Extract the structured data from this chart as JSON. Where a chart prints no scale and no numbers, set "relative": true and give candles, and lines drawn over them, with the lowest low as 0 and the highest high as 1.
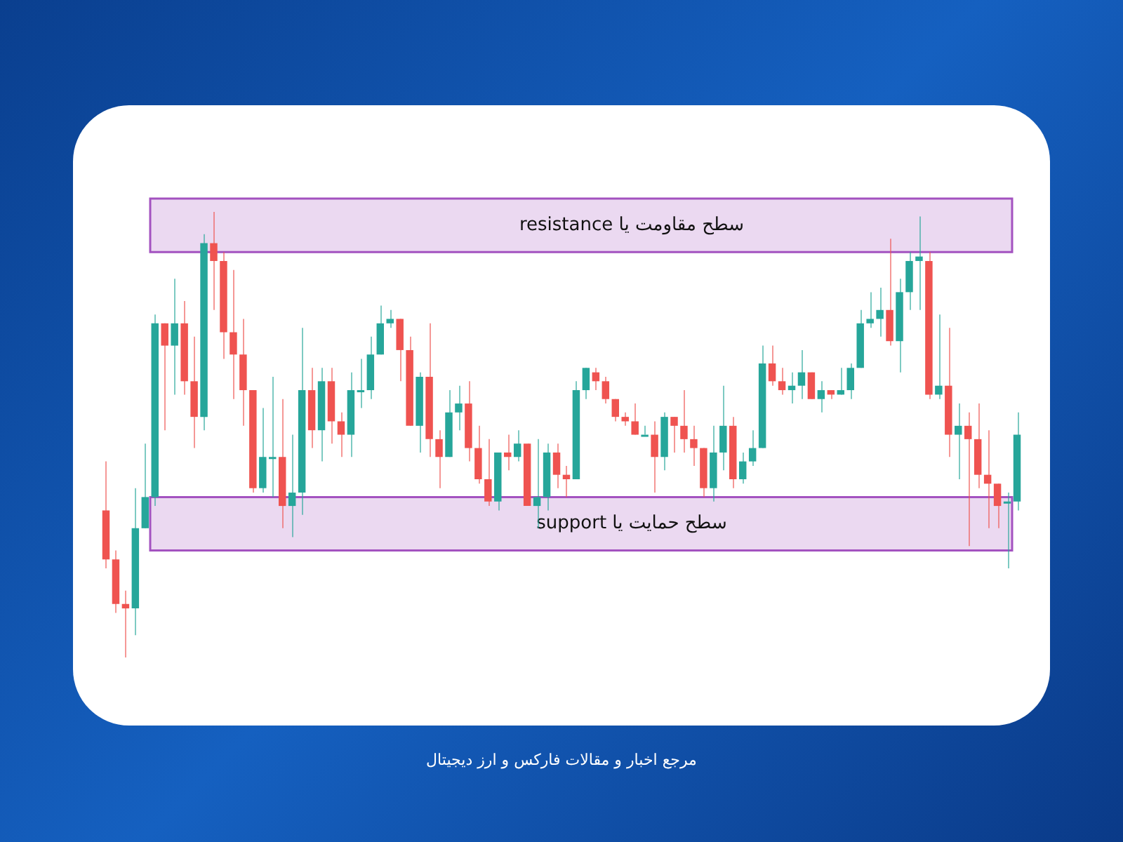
{
  "chart_data": {
    "type": "candlestick",
    "relative": true,
    "tick_labels": false,
    "legend": false,
    "categories": [
      null,
      null,
      null,
      null,
      null,
      null,
      null,
      null,
      null,
      null,
      null,
      null,
      null,
      null,
      null,
      null,
      null,
      null,
      null,
      null,
      null,
      null,
      null,
      null,
      null,
      null,
      null,
      null,
      null,
      null,
      null,
      null,
      null,
      null,
      null,
      null,
      null,
      null,
      null,
      null,
      null,
      null,
      null,
      null,
      null,
      null,
      null,
      null,
      null,
      null,
      null,
      null,
      null,
      null,
      null,
      null,
      null,
      null,
      null,
      null,
      null,
      null,
      null,
      null,
      null,
      null,
      null,
      null,
      null,
      null,
      null,
      null,
      null,
      null,
      null,
      null,
      null,
      null,
      null,
      null,
      null,
      null,
      null,
      null,
      null,
      null,
      null,
      null,
      null,
      null,
      null,
      null,
      null,
      null
    ],
    "ohlc": [
      [
        0.33,
        0.44,
        0.2,
        0.22
      ],
      [
        0.22,
        0.24,
        0.1,
        0.12
      ],
      [
        0.12,
        0.15,
        0,
        0.11
      ],
      [
        0.11,
        0.38,
        0.05,
        0.29
      ],
      [
        0.29,
        0.48,
        0.29,
        0.36
      ],
      [
        0.36,
        0.77,
        0.34,
        0.75
      ],
      [
        0.75,
        0.75,
        0.51,
        0.7
      ],
      [
        0.7,
        0.85,
        0.59,
        0.75
      ],
      [
        0.75,
        0.8,
        0.59,
        0.62
      ],
      [
        0.62,
        0.72,
        0.47,
        0.54
      ],
      [
        0.54,
        0.95,
        0.51,
        0.93
      ],
      [
        0.93,
        1,
        0.78,
        0.89
      ],
      [
        0.89,
        0.91,
        0.67,
        0.73
      ],
      [
        0.73,
        0.87,
        0.58,
        0.68
      ],
      [
        0.68,
        0.76,
        0.52,
        0.6
      ],
      [
        0.6,
        0.6,
        0.37,
        0.38
      ],
      [
        0.38,
        0.56,
        0.37,
        0.45
      ],
      [
        0.45,
        0.63,
        0.36,
        0.45
      ],
      [
        0.45,
        0.58,
        0.29,
        0.34
      ],
      [
        0.34,
        0.5,
        0.27,
        0.37
      ],
      [
        0.37,
        0.74,
        0.32,
        0.6
      ],
      [
        0.6,
        0.65,
        0.47,
        0.51
      ],
      [
        0.51,
        0.65,
        0.44,
        0.62
      ],
      [
        0.62,
        0.65,
        0.48,
        0.53
      ],
      [
        0.53,
        0.55,
        0.45,
        0.5
      ],
      [
        0.5,
        0.64,
        0.45,
        0.6
      ],
      [
        0.6,
        0.67,
        0.56,
        0.6
      ],
      [
        0.6,
        0.72,
        0.58,
        0.68
      ],
      [
        0.68,
        0.79,
        0.68,
        0.75
      ],
      [
        0.75,
        0.78,
        0.74,
        0.76
      ],
      [
        0.76,
        0.76,
        0.62,
        0.69
      ],
      [
        0.69,
        0.72,
        0.52,
        0.52
      ],
      [
        0.52,
        0.64,
        0.46,
        0.63
      ],
      [
        0.63,
        0.75,
        0.45,
        0.49
      ],
      [
        0.49,
        0.51,
        0.38,
        0.45
      ],
      [
        0.45,
        0.6,
        0.45,
        0.55
      ],
      [
        0.55,
        0.61,
        0.51,
        0.57
      ],
      [
        0.57,
        0.62,
        0.44,
        0.47
      ],
      [
        0.47,
        0.52,
        0.39,
        0.4
      ],
      [
        0.4,
        0.49,
        0.34,
        0.35
      ],
      [
        0.35,
        0.46,
        0.33,
        0.46
      ],
      [
        0.46,
        0.5,
        0.42,
        0.45
      ],
      [
        0.45,
        0.51,
        0.44,
        0.48
      ],
      [
        0.48,
        0.48,
        0.34,
        0.34
      ],
      [
        0.34,
        0.49,
        0.29,
        0.36
      ],
      [
        0.36,
        0.48,
        0.33,
        0.46
      ],
      [
        0.46,
        0.48,
        0.38,
        0.41
      ],
      [
        0.41,
        0.43,
        0.36,
        0.4
      ],
      [
        0.4,
        0.62,
        0.4,
        0.6
      ],
      [
        0.6,
        0.65,
        0.58,
        0.65
      ],
      [
        0.64,
        0.65,
        0.6,
        0.62
      ],
      [
        0.62,
        0.63,
        0.57,
        0.58
      ],
      [
        0.58,
        0.58,
        0.53,
        0.54
      ],
      [
        0.54,
        0.55,
        0.52,
        0.53
      ],
      [
        0.53,
        0.57,
        0.5,
        0.5
      ],
      [
        0.5,
        0.52,
        0.5,
        0.5
      ],
      [
        0.5,
        0.53,
        0.37,
        0.45
      ],
      [
        0.45,
        0.55,
        0.42,
        0.54
      ],
      [
        0.54,
        0.54,
        0.46,
        0.52
      ],
      [
        0.52,
        0.6,
        0.46,
        0.49
      ],
      [
        0.49,
        0.52,
        0.43,
        0.47
      ],
      [
        0.47,
        0.47,
        0.36,
        0.38
      ],
      [
        0.38,
        0.52,
        0.35,
        0.46
      ],
      [
        0.46,
        0.61,
        0.42,
        0.52
      ],
      [
        0.52,
        0.54,
        0.38,
        0.4
      ],
      [
        0.4,
        0.46,
        0.39,
        0.44
      ],
      [
        0.44,
        0.51,
        0.43,
        0.47
      ],
      [
        0.47,
        0.7,
        0.47,
        0.66
      ],
      [
        0.66,
        0.7,
        0.61,
        0.62
      ],
      [
        0.62,
        0.65,
        0.59,
        0.6
      ],
      [
        0.6,
        0.64,
        0.57,
        0.61
      ],
      [
        0.61,
        0.69,
        0.58,
        0.64
      ],
      [
        0.64,
        0.64,
        0.58,
        0.58
      ],
      [
        0.58,
        0.62,
        0.55,
        0.6
      ],
      [
        0.6,
        0.6,
        0.58,
        0.59
      ],
      [
        0.59,
        0.65,
        0.59,
        0.6
      ],
      [
        0.6,
        0.66,
        0.58,
        0.65
      ],
      [
        0.65,
        0.78,
        0.65,
        0.75
      ],
      [
        0.75,
        0.82,
        0.74,
        0.76
      ],
      [
        0.76,
        0.83,
        0.72,
        0.78
      ],
      [
        0.78,
        0.94,
        0.7,
        0.71
      ],
      [
        0.71,
        0.85,
        0.64,
        0.82
      ],
      [
        0.82,
        0.91,
        0.78,
        0.89
      ],
      [
        0.89,
        0.99,
        0.78,
        0.9
      ],
      [
        0.89,
        0.91,
        0.58,
        0.59
      ],
      [
        0.59,
        0.77,
        0.58,
        0.61
      ],
      [
        0.61,
        0.74,
        0.45,
        0.5
      ],
      [
        0.5,
        0.57,
        0.4,
        0.52
      ],
      [
        0.52,
        0.55,
        0.25,
        0.49
      ],
      [
        0.49,
        0.57,
        0.38,
        0.41
      ],
      [
        0.41,
        0.51,
        0.29,
        0.39
      ],
      [
        0.39,
        0.39,
        0.29,
        0.34
      ],
      [
        0.35,
        0.37,
        0.2,
        0.35
      ],
      [
        0.35,
        0.55,
        0.33,
        0.5
      ]
    ],
    "colors": [
      "#ef5350",
      "#ef5350",
      "#ef5350",
      "#26a69a",
      "#26a69a",
      "#26a69a",
      "#ef5350",
      "#26a69a",
      "#ef5350",
      "#ef5350",
      "#26a69a",
      "#ef5350",
      "#ef5350",
      "#ef5350",
      "#ef5350",
      "#ef5350",
      "#26a69a",
      "#26a69a",
      "#ef5350",
      "#26a69a",
      "#26a69a",
      "#ef5350",
      "#26a69a",
      "#ef5350",
      "#ef5350",
      "#26a69a",
      "#26a69a",
      "#26a69a",
      "#26a69a",
      "#26a69a",
      "#ef5350",
      "#ef5350",
      "#26a69a",
      "#ef5350",
      "#ef5350",
      "#26a69a",
      "#26a69a",
      "#ef5350",
      "#ef5350",
      "#ef5350",
      "#26a69a",
      "#ef5350",
      "#26a69a",
      "#ef5350",
      "#26a69a",
      "#26a69a",
      "#ef5350",
      "#ef5350",
      "#26a69a",
      "#26a69a",
      "#ef5350",
      "#ef5350",
      "#ef5350",
      "#ef5350",
      "#ef5350",
      "#26a69a",
      "#ef5350",
      "#26a69a",
      "#ef5350",
      "#ef5350",
      "#ef5350",
      "#ef5350",
      "#26a69a",
      "#26a69a",
      "#ef5350",
      "#26a69a",
      "#26a69a",
      "#26a69a",
      "#ef5350",
      "#ef5350",
      "#26a69a",
      "#26a69a",
      "#ef5350",
      "#26a69a",
      "#ef5350",
      "#26a69a",
      "#26a69a",
      "#26a69a",
      "#26a69a",
      "#26a69a",
      "#ef5350",
      "#26a69a",
      "#26a69a",
      "#26a69a",
      "#ef5350",
      "#26a69a",
      "#ef5350",
      "#26a69a",
      "#ef5350",
      "#ef5350",
      "#ef5350",
      "#ef5350",
      "#26a69a",
      "#26a69a"
    ],
    "bands": [
      {
        "axis": "y",
        "from": 0.91,
        "to": 1.03,
        "label": "سطح مقاومت یا resistance",
        "color": "#a352c0"
      },
      {
        "axis": "y",
        "from": 0.24,
        "to": 0.36,
        "label": "سطح حمایت یا support",
        "color": "#a352c0"
      }
    ],
    "annotations": [
      "مرجع اخبار و مقالات فارکس و ارز دیجیتال"
    ]
  }
}
